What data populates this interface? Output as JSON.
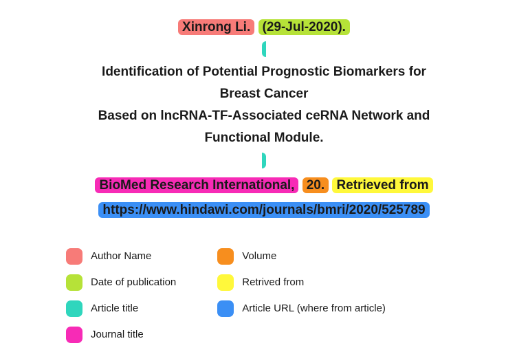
{
  "citation": {
    "author": "Xinrong Li.",
    "date_open": "(",
    "date": "29-Jul-2020",
    "date_close": ").",
    "article_title_line1": "Identification of Potential Prognostic Biomarkers for",
    "article_title_line2": "Breast Cancer",
    "article_title_line3": "Based on lncRNA-TF-Associated ceRNA Network and",
    "article_title_line4": "Functional Module.",
    "journal_title": "BioMed Research International,",
    "volume": "20.",
    "retrieved_from": "Retrieved from",
    "url": "https://www.hindawi.com/journals/bmri/2020/525789"
  },
  "legend": {
    "col1": [
      {
        "label": "Author Name",
        "color": "#f77b78"
      },
      {
        "label": "Date of publication",
        "color": "#b6e238"
      },
      {
        "label": "Article title",
        "color": "#2fd6bd"
      },
      {
        "label": "Journal title",
        "color": "#f72bb6"
      }
    ],
    "col2": [
      {
        "label": "Volume",
        "color": "#f78e1e"
      },
      {
        "label": "Retrived from",
        "color": "#fff83b"
      },
      {
        "label": "Article URL (where from article)",
        "color": "#3b8ff5"
      }
    ]
  },
  "colors": {
    "author": "#f77b78",
    "date": "#b6e238",
    "article_title": "#2fd6bd",
    "journal_title": "#f72bb6",
    "volume": "#f78e1e",
    "retrieved_from": "#fff83b",
    "url": "#3b8ff5"
  }
}
